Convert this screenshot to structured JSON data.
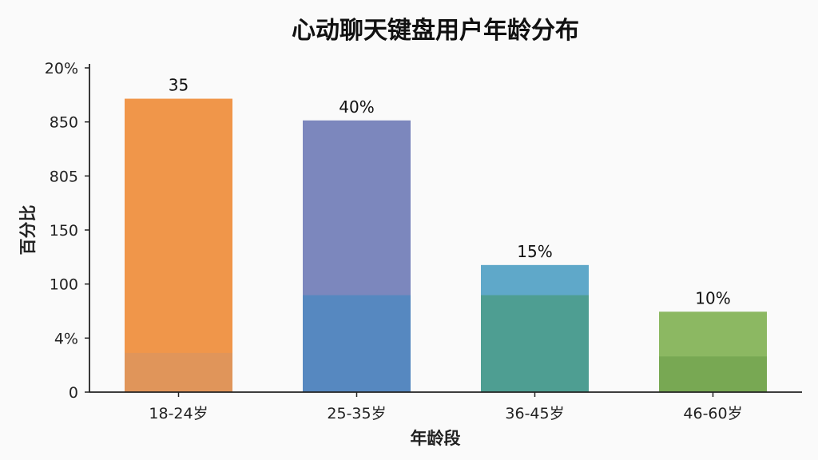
{
  "chart_data": {
    "type": "bar",
    "title": "心动聊天键盘用户年龄分布",
    "xlabel": "年龄段",
    "ylabel": "百分比",
    "categories": [
      "18-24岁",
      "25-35岁",
      "36-45岁",
      "46-60岁"
    ],
    "values": [
      35,
      40,
      15,
      10
    ],
    "data_labels": [
      "35",
      "40%",
      "15%",
      "10%"
    ],
    "y_tick_labels": [
      "0",
      "4%",
      "100",
      "150",
      "805",
      "850",
      "20%"
    ],
    "bar_heights_fraction": [
      0.905,
      0.838,
      0.392,
      0.248
    ],
    "bar_lower_band_fraction": [
      0.121,
      0.299,
      0.299,
      0.11
    ],
    "grid": false,
    "colors": {
      "bars_top": [
        "#f0964a",
        "#7c87bd",
        "#5fa8c9",
        "#8cb862"
      ],
      "bars_bottom": [
        "#e0955a",
        "#5688c0",
        "#4e9e92",
        "#78a853"
      ],
      "axis": "#222222"
    }
  }
}
